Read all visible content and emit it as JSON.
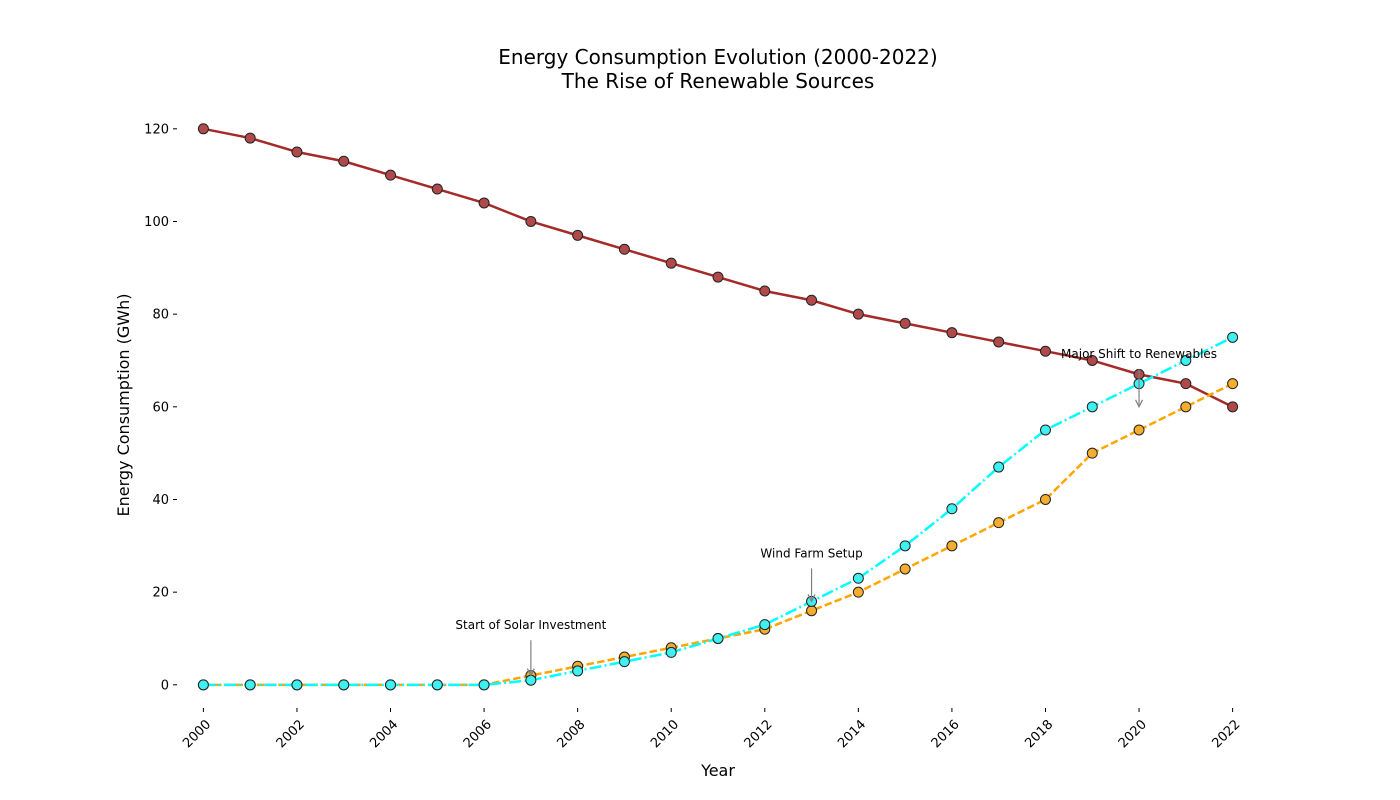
{
  "chart_data": {
    "type": "line",
    "title": "Energy Consumption Evolution (2000-2022)",
    "subtitle": "The Rise of Renewable Sources",
    "xlabel": "Year",
    "ylabel": "Energy Consumption (GWh)",
    "xlim": [
      1999.5,
      2022.5
    ],
    "ylim": [
      -5,
      126
    ],
    "x_ticks": [
      2000,
      2002,
      2004,
      2006,
      2008,
      2010,
      2012,
      2014,
      2016,
      2018,
      2020,
      2022
    ],
    "y_ticks": [
      0,
      20,
      40,
      60,
      80,
      100,
      120
    ],
    "grid": false,
    "x": [
      2000,
      2001,
      2002,
      2003,
      2004,
      2005,
      2006,
      2007,
      2008,
      2009,
      2010,
      2011,
      2012,
      2013,
      2014,
      2015,
      2016,
      2017,
      2018,
      2019,
      2020,
      2021,
      2022
    ],
    "series": [
      {
        "color": "#a52a2a",
        "marker_color": "#b04a4a",
        "dash": "solid",
        "values": [
          120,
          118,
          115,
          113,
          110,
          107,
          104,
          100,
          97,
          94,
          91,
          88,
          85,
          83,
          80,
          78,
          76,
          74,
          72,
          70,
          67,
          65,
          60
        ]
      },
      {
        "color": "#ffa500",
        "marker_color": "#f5ad2e",
        "dash": "dashed",
        "values": [
          0,
          0,
          0,
          0,
          0,
          0,
          0,
          2,
          4,
          6,
          8,
          10,
          12,
          16,
          20,
          25,
          30,
          35,
          40,
          50,
          55,
          60,
          65
        ]
      },
      {
        "color": "#00ffff",
        "marker_color": "#3ff0f0",
        "dash": "dashdot",
        "values": [
          0,
          0,
          0,
          0,
          0,
          0,
          0,
          1,
          3,
          5,
          7,
          10,
          13,
          18,
          23,
          30,
          38,
          47,
          55,
          60,
          65,
          70,
          75
        ]
      }
    ],
    "annotations": [
      {
        "text": "Start of Solar Investment",
        "x": 2007,
        "y": 2,
        "text_y": 12
      },
      {
        "text": "Wind Farm Setup",
        "x": 2013,
        "y": 18,
        "text_y": 27.5
      },
      {
        "text": "Major Shift to Renewables",
        "x": 2020,
        "y": 60,
        "text_y": 70.5
      }
    ],
    "annotation_color": "#808080"
  }
}
